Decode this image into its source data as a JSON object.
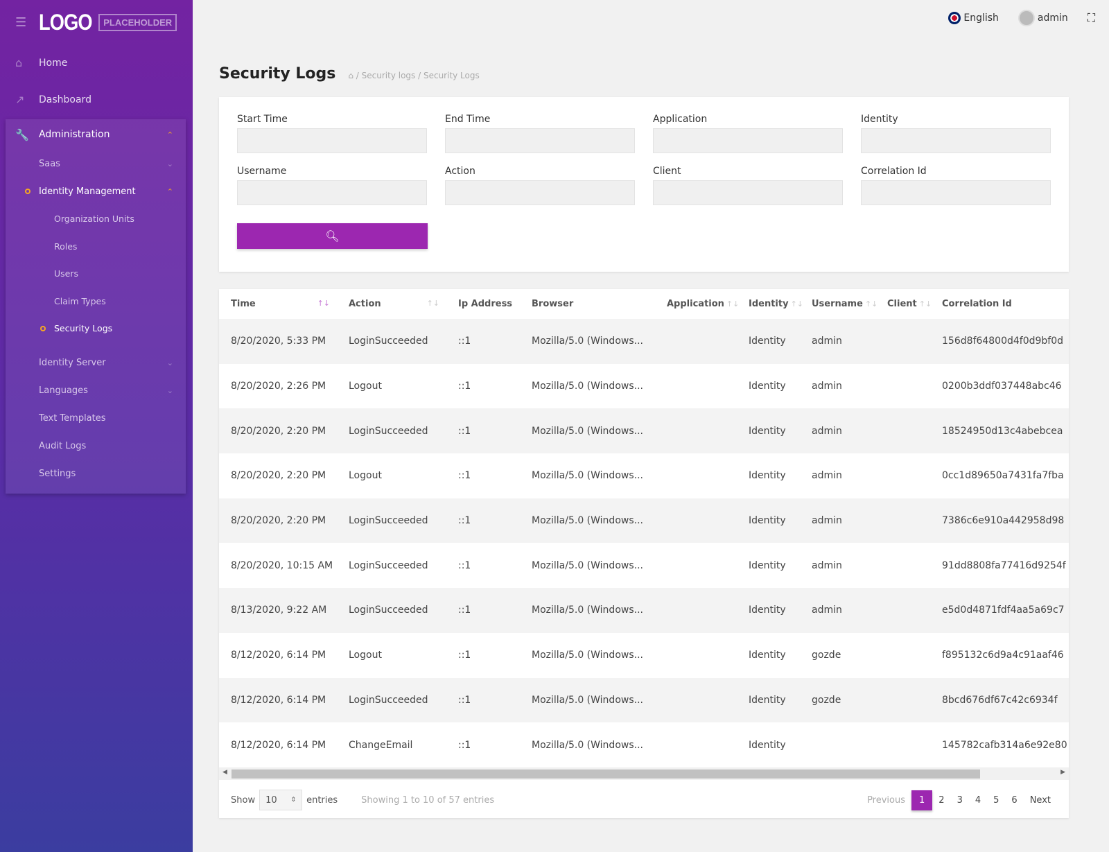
{
  "brand": {
    "logo": "LOGO",
    "logo_sub": "PLACEHOLDER"
  },
  "sidebar": {
    "items": [
      {
        "label": "Home",
        "icon": "home-icon"
      },
      {
        "label": "Dashboard",
        "icon": "chart-icon"
      }
    ],
    "admin": {
      "label": "Administration",
      "icon": "wrench-icon",
      "saas": "Saas",
      "identity_mgmt": "Identity Management",
      "identity_children": [
        "Organization Units",
        "Roles",
        "Users",
        "Claim Types",
        "Security Logs"
      ],
      "others": [
        "Identity Server",
        "Languages",
        "Text Templates",
        "Audit Logs",
        "Settings"
      ]
    }
  },
  "topbar": {
    "language": "English",
    "user": "admin"
  },
  "page": {
    "title": "Security Logs",
    "breadcrumb": [
      "Security logs",
      "Security Logs"
    ]
  },
  "filters": {
    "labels": [
      "Start Time",
      "End Time",
      "Application",
      "Identity",
      "Username",
      "Action",
      "Client",
      "Correlation Id"
    ]
  },
  "table": {
    "columns": [
      "Time",
      "Action",
      "Ip Address",
      "Browser",
      "Application",
      "Identity",
      "Username",
      "Client",
      "Correlation Id"
    ],
    "rows": [
      [
        "8/20/2020, 5:33 PM",
        "LoginSucceeded",
        "::1",
        "Mozilla/5.0 (Windows...",
        "",
        "Identity",
        "admin",
        "",
        "156d8f64800d4f0d9bf0d"
      ],
      [
        "8/20/2020, 2:26 PM",
        "Logout",
        "::1",
        "Mozilla/5.0 (Windows...",
        "",
        "Identity",
        "admin",
        "",
        "0200b3ddf037448abc46"
      ],
      [
        "8/20/2020, 2:20 PM",
        "LoginSucceeded",
        "::1",
        "Mozilla/5.0 (Windows...",
        "",
        "Identity",
        "admin",
        "",
        "18524950d13c4abebcea"
      ],
      [
        "8/20/2020, 2:20 PM",
        "Logout",
        "::1",
        "Mozilla/5.0 (Windows...",
        "",
        "Identity",
        "admin",
        "",
        "0cc1d89650a7431fa7fba"
      ],
      [
        "8/20/2020, 2:20 PM",
        "LoginSucceeded",
        "::1",
        "Mozilla/5.0 (Windows...",
        "",
        "Identity",
        "admin",
        "",
        "7386c6e910a442958d98"
      ],
      [
        "8/20/2020, 10:15 AM",
        "LoginSucceeded",
        "::1",
        "Mozilla/5.0 (Windows...",
        "",
        "Identity",
        "admin",
        "",
        "91dd8808fa77416d9254f"
      ],
      [
        "8/13/2020, 9:22 AM",
        "LoginSucceeded",
        "::1",
        "Mozilla/5.0 (Windows...",
        "",
        "Identity",
        "admin",
        "",
        "e5d0d4871fdf4aa5a69c7"
      ],
      [
        "8/12/2020, 6:14 PM",
        "Logout",
        "::1",
        "Mozilla/5.0 (Windows...",
        "",
        "Identity",
        "gozde",
        "",
        "f895132c6d9a4c91aaf46"
      ],
      [
        "8/12/2020, 6:14 PM",
        "LoginSucceeded",
        "::1",
        "Mozilla/5.0 (Windows...",
        "",
        "Identity",
        "gozde",
        "",
        "8bcd676df67c42c6934f"
      ],
      [
        "8/12/2020, 6:14 PM",
        "ChangeEmail",
        "::1",
        "Mozilla/5.0 (Windows...",
        "",
        "Identity",
        "",
        "",
        "145782cafb314a6e92e80"
      ]
    ]
  },
  "footer": {
    "show": "Show",
    "page_size": "10",
    "entries": "entries",
    "info": "Showing 1 to 10 of 57 entries",
    "previous": "Previous",
    "pages": [
      "1",
      "2",
      "3",
      "4",
      "5",
      "6"
    ],
    "next": "Next",
    "current_page": 1
  },
  "colors": {
    "accent": "#9c27b0",
    "sidebar_top": "#7323a2",
    "sidebar_bottom": "#3b3da0",
    "highlight": "#f5a623"
  }
}
